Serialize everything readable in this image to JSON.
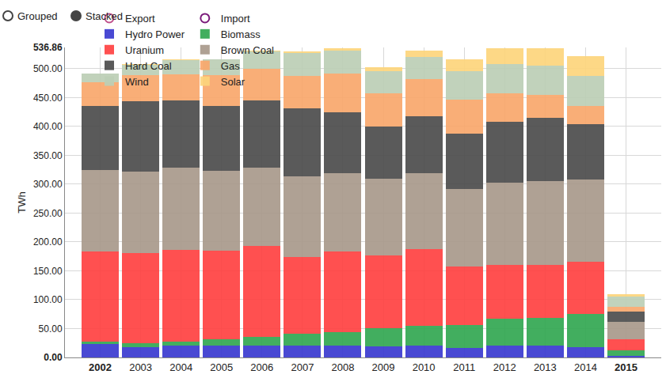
{
  "chart_data": {
    "type": "bar",
    "stacked": true,
    "grid": true,
    "legend": "top",
    "annotations": [
      "Grouped",
      "Stacked"
    ],
    "y_label": "TWh",
    "categories": [
      "2002",
      "2003",
      "2004",
      "2005",
      "2006",
      "2007",
      "2008",
      "2009",
      "2010",
      "2011",
      "2012",
      "2013",
      "2014",
      "2015"
    ],
    "ylim": [
      0,
      536.86
    ],
    "yticks": [
      {
        "value": 0,
        "label": "0.00"
      },
      {
        "value": 50,
        "label": "50.00"
      },
      {
        "value": 100,
        "label": "100.00"
      },
      {
        "value": 150,
        "label": "150.00"
      },
      {
        "value": 200,
        "label": "200.00"
      },
      {
        "value": 250,
        "label": "250.00"
      },
      {
        "value": 300,
        "label": "300.00"
      },
      {
        "value": 350,
        "label": "350.00"
      },
      {
        "value": 400,
        "label": "400.00"
      },
      {
        "value": 450,
        "label": "450.00"
      },
      {
        "value": 500,
        "label": "500.00"
      },
      {
        "value": 536.86,
        "label": "536.86"
      }
    ],
    "series": [
      {
        "name": "Export",
        "type": "scatter",
        "marker": "circle-open",
        "color": "#c0508a",
        "values": [
          null,
          null,
          null,
          null,
          null,
          null,
          null,
          null,
          null,
          null,
          null,
          null,
          null,
          null
        ]
      },
      {
        "name": "Import",
        "type": "scatter",
        "marker": "circle-open",
        "color": "#7a1a7a",
        "values": [
          null,
          null,
          null,
          null,
          null,
          null,
          null,
          null,
          null,
          null,
          null,
          null,
          null,
          null
        ]
      },
      {
        "name": "Hydro Power",
        "color": "#3a3ad0",
        "values": [
          23,
          18,
          20,
          20,
          20,
          21,
          20,
          19,
          21,
          17,
          21,
          20,
          18,
          3
        ]
      },
      {
        "name": "Biomass",
        "color": "#33a852",
        "values": [
          5,
          7,
          8,
          11,
          15,
          20,
          24,
          31,
          34,
          39,
          46,
          48,
          57,
          10
        ]
      },
      {
        "name": "Uranium",
        "color": "#ff4242",
        "values": [
          156,
          156,
          158,
          154,
          158,
          133,
          140,
          127,
          133,
          102,
          93,
          92,
          91,
          19
        ]
      },
      {
        "name": "Brown Coal",
        "color": "#a99a8b",
        "values": [
          141,
          141,
          143,
          138,
          136,
          139,
          135,
          132,
          131,
          134,
          142,
          145,
          142,
          29
        ]
      },
      {
        "name": "Hard Coal",
        "color": "#4d4d4d",
        "values": [
          111,
          122,
          116,
          113,
          116,
          119,
          106,
          91,
          99,
          96,
          106,
          110,
          96,
          19
        ]
      },
      {
        "name": "Gas",
        "color": "#f9a86c",
        "values": [
          40,
          45,
          45,
          53,
          55,
          56,
          66,
          57,
          64,
          59,
          50,
          40,
          31,
          8
        ]
      },
      {
        "name": "Wind",
        "color": "#bccfb6",
        "values": [
          15,
          18,
          25,
          27,
          30,
          39,
          40,
          39,
          38,
          49,
          50,
          51,
          52,
          17
        ]
      },
      {
        "name": "Solar",
        "color": "#fdd57c",
        "values": [
          1,
          1,
          1,
          1,
          2,
          3,
          4,
          7,
          12,
          20,
          28,
          30,
          35,
          5
        ]
      }
    ]
  }
}
